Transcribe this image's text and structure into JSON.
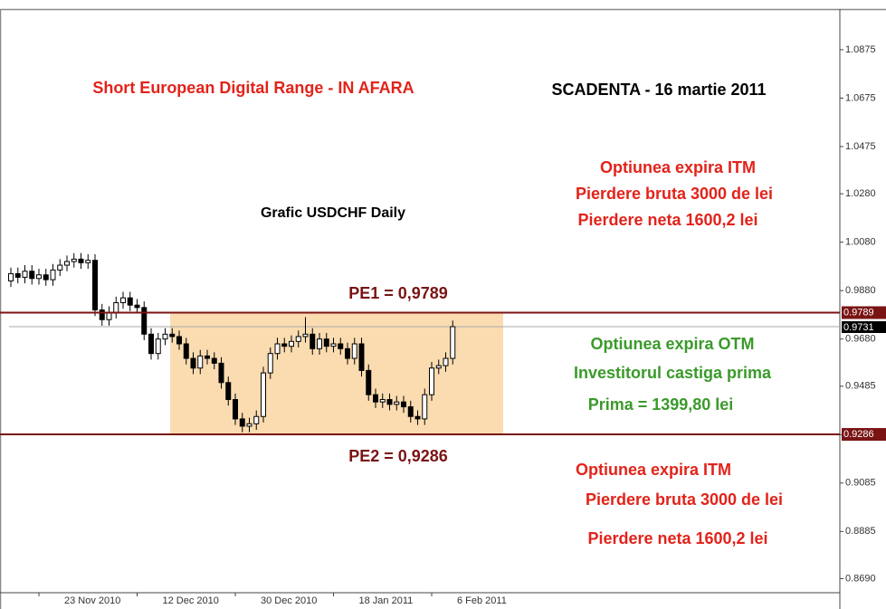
{
  "chart_data": {
    "type": "candlestick",
    "categories": [
      null,
      null,
      null,
      null,
      "23 Nov 2010",
      null,
      null,
      null,
      null,
      null,
      null,
      null,
      null,
      null,
      null,
      null,
      null,
      null,
      "12 Dec 2010",
      null,
      null,
      null,
      null,
      null,
      null,
      null,
      null,
      null,
      null,
      null,
      null,
      null,
      "30 Dec 2010",
      null,
      null,
      null,
      null,
      null,
      null,
      null,
      null,
      null,
      null,
      null,
      null,
      null,
      "18 Jan 2011",
      null,
      null,
      null,
      null,
      null,
      null,
      null,
      null,
      null,
      null,
      null,
      null,
      null,
      "6 Feb 2011",
      null,
      null,
      null
    ],
    "open": [
      0.992,
      0.995,
      0.9935,
      0.996,
      0.993,
      0.9945,
      0.9925,
      0.9965,
      0.9985,
      1.0,
      1.001,
      0.9995,
      1.0005,
      0.98,
      0.976,
      0.979,
      0.983,
      0.985,
      0.982,
      0.981,
      0.97,
      0.962,
      0.968,
      0.97,
      0.969,
      0.966,
      0.96,
      0.956,
      0.961,
      0.96,
      0.958,
      0.95,
      0.943,
      0.935,
      0.932,
      0.933,
      0.936,
      0.954,
      0.962,
      0.966,
      0.965,
      0.967,
      0.969,
      0.97,
      0.964,
      0.968,
      0.965,
      0.966,
      0.964,
      0.96,
      0.966,
      0.955,
      0.945,
      0.942,
      0.943,
      0.941,
      0.942,
      0.94,
      0.936,
      0.935,
      0.945,
      0.956,
      0.957,
      0.96
    ],
    "high": [
      0.9975,
      0.9975,
      0.9985,
      0.9985,
      0.997,
      0.997,
      0.999,
      1.001,
      1.0025,
      1.0035,
      1.0035,
      1.003,
      1.003,
      0.9825,
      0.9815,
      0.9855,
      0.9875,
      0.9875,
      0.9845,
      0.9835,
      0.9725,
      0.9705,
      0.9725,
      0.9725,
      0.9715,
      0.9685,
      0.9625,
      0.9635,
      0.9635,
      0.9625,
      0.9605,
      0.9525,
      0.9455,
      0.9375,
      0.9355,
      0.9385,
      0.9565,
      0.9645,
      0.9685,
      0.9685,
      0.9695,
      0.9715,
      0.977,
      0.9725,
      0.9705,
      0.9705,
      0.9685,
      0.9685,
      0.9665,
      0.9685,
      0.9685,
      0.9575,
      0.9475,
      0.9455,
      0.9455,
      0.9445,
      0.9445,
      0.9425,
      0.9385,
      0.9475,
      0.9585,
      0.9595,
      0.9625,
      0.9756
    ],
    "low": [
      0.9895,
      0.991,
      0.991,
      0.9905,
      0.9905,
      0.99,
      0.99,
      0.994,
      0.996,
      0.9975,
      0.997,
      0.997,
      0.9775,
      0.9735,
      0.9735,
      0.9765,
      0.9805,
      0.9795,
      0.9785,
      0.9675,
      0.9595,
      0.9595,
      0.9655,
      0.9665,
      0.9635,
      0.9575,
      0.9535,
      0.9535,
      0.9575,
      0.9555,
      0.9475,
      0.9405,
      0.9325,
      0.9295,
      0.9295,
      0.9305,
      0.9335,
      0.9515,
      0.9595,
      0.9625,
      0.9625,
      0.9645,
      0.9665,
      0.9615,
      0.9615,
      0.9625,
      0.9625,
      0.9615,
      0.9575,
      0.9575,
      0.9525,
      0.9425,
      0.9395,
      0.9395,
      0.9385,
      0.9385,
      0.9375,
      0.9335,
      0.9325,
      0.9325,
      0.9425,
      0.9535,
      0.9545,
      0.9575
    ],
    "close": [
      0.995,
      0.9935,
      0.996,
      0.993,
      0.9945,
      0.9925,
      0.9965,
      0.9985,
      1.0,
      1.001,
      0.9995,
      1.0005,
      0.98,
      0.976,
      0.979,
      0.983,
      0.985,
      0.982,
      0.981,
      0.97,
      0.962,
      0.968,
      0.97,
      0.969,
      0.966,
      0.96,
      0.956,
      0.961,
      0.96,
      0.958,
      0.95,
      0.943,
      0.935,
      0.932,
      0.933,
      0.936,
      0.954,
      0.962,
      0.966,
      0.965,
      0.967,
      0.969,
      0.97,
      0.964,
      0.968,
      0.965,
      0.966,
      0.964,
      0.96,
      0.966,
      0.955,
      0.945,
      0.942,
      0.943,
      0.941,
      0.942,
      0.94,
      0.936,
      0.935,
      0.945,
      0.956,
      0.957,
      0.96,
      0.9731
    ],
    "ylim": [
      0.8632,
      1.1043
    ],
    "yticks": [
      1.0875,
      1.0675,
      1.0475,
      {
        "value": 1.028,
        "label": "1.0280"
      },
      {
        "value": 1.008,
        "label": "1.0080"
      },
      {
        "value": 0.988,
        "label": "0.9880"
      },
      {
        "value": 0.968,
        "label": "0.9680"
      },
      0.9485,
      0.9285,
      0.9085,
      0.8885,
      {
        "value": 0.869,
        "label": "0.8690"
      }
    ],
    "levels": [
      {
        "name": "PE1 = 0,9789",
        "value": 0.9789,
        "color": "#7a1414"
      },
      {
        "name": "PE2 = 0,9286",
        "value": 0.9286,
        "color": "#7a1414"
      }
    ],
    "price_line": {
      "value": 0.9731,
      "color": "#000000"
    },
    "annotations": [
      {
        "text": "Short European Digital Range - IN AFARA",
        "color": "#e2231a"
      },
      {
        "text": "SCADENTA - 16 martie 2011",
        "color": "#000000"
      },
      {
        "text": "Optiunea expira ITM",
        "color": "#e2231a"
      },
      {
        "text": "Pierdere bruta 3000 de lei",
        "color": "#e2231a"
      },
      {
        "text": "Pierdere neta 1600,2 lei",
        "color": "#e2231a"
      },
      {
        "text": "Grafic USDCHF Daily",
        "color": "#000000"
      },
      {
        "text": "Optiunea expira OTM",
        "color": "#3a9a2a"
      },
      {
        "text": "Investitorul castiga prima",
        "color": "#3a9a2a"
      },
      {
        "text": "Prima = 1399,80 lei",
        "color": "#3a9a2a"
      },
      {
        "text": "Optiunea expira ITM",
        "color": "#e2231a"
      },
      {
        "text": "Pierdere bruta 3000 de lei",
        "color": "#e2231a"
      },
      {
        "text": "Pierdere neta 1600,2 lei",
        "color": "#e2231a"
      }
    ],
    "zone_color": "#fbdcb1"
  }
}
